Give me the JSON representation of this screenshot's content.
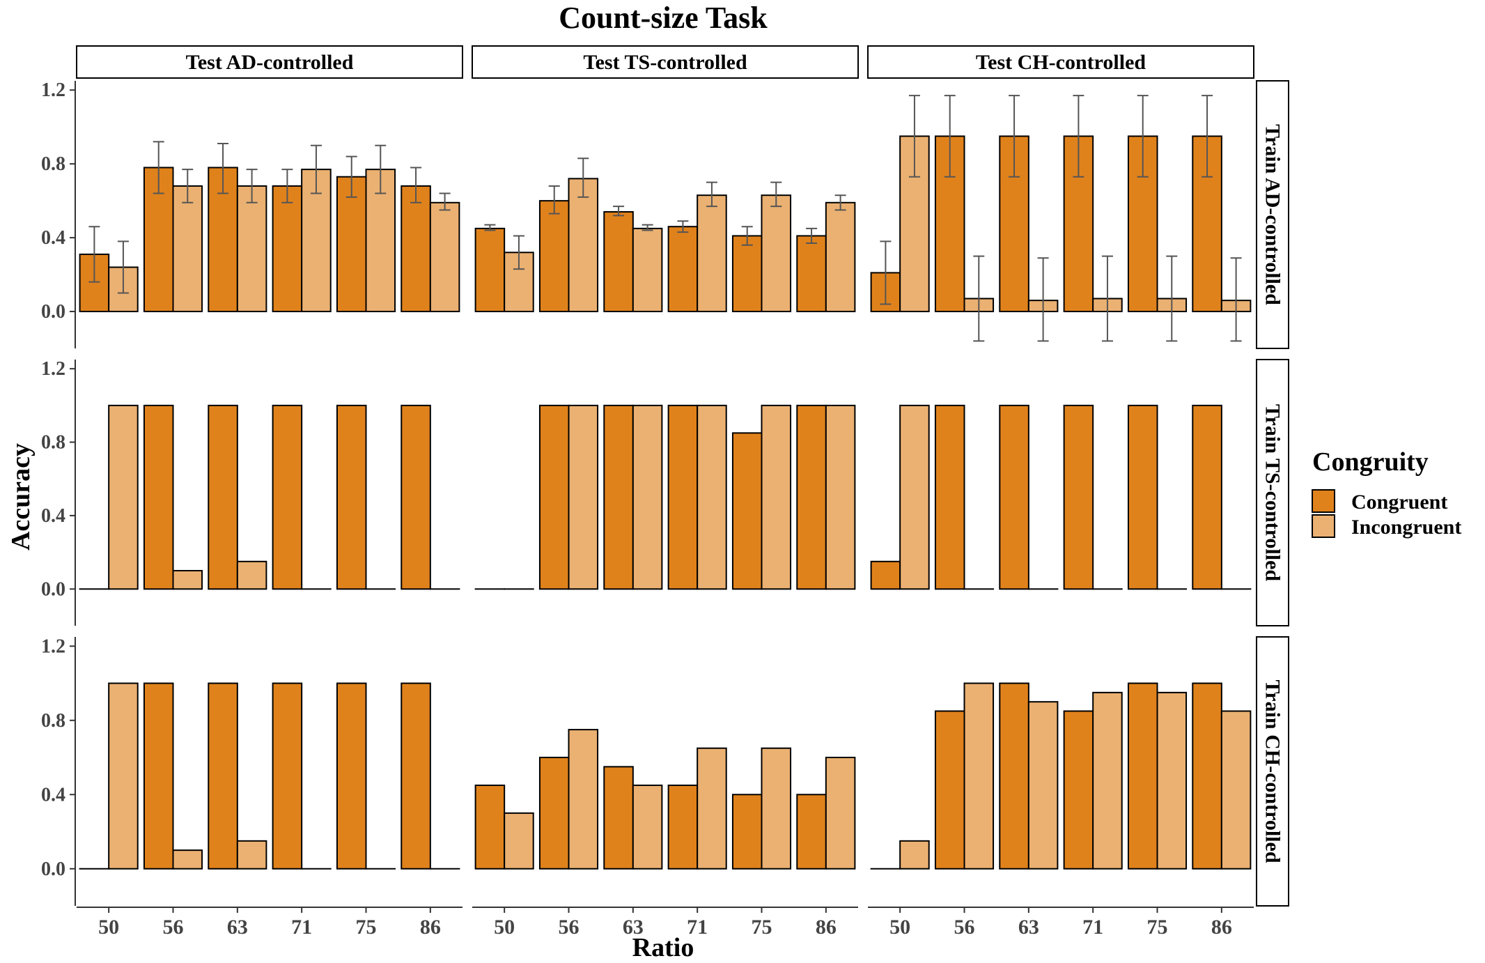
{
  "chart_data": {
    "type": "bar",
    "title": "Count-size Task",
    "xlabel": "Ratio",
    "ylabel": "Accuracy",
    "categories": [
      "50",
      "56",
      "63",
      "71",
      "75",
      "86"
    ],
    "ylim": [
      -0.2,
      1.25
    ],
    "yticks": [
      "0.0",
      "0.4",
      "0.8",
      "1.2"
    ],
    "grid": false,
    "legend": {
      "title": "Congruity",
      "position": "right",
      "entries": [
        "Congruent",
        "Incongruent"
      ]
    },
    "colors": {
      "Congruent": "#E0821C",
      "Incongruent": "#EBB172"
    },
    "columns": [
      "Test AD-controlled",
      "Test TS-controlled",
      "Test CH-controlled"
    ],
    "rows": [
      "Train AD-controlled",
      "Train TS-controlled",
      "Train CH-controlled"
    ],
    "panels": [
      {
        "row": "Train AD-controlled",
        "column": "Test AD-controlled",
        "series": [
          {
            "name": "Congruent",
            "values": [
              0.31,
              0.78,
              0.78,
              0.68,
              0.73,
              0.68
            ],
            "err_low": [
              0.16,
              0.64,
              0.64,
              0.59,
              0.62,
              0.59
            ],
            "err_high": [
              0.46,
              0.92,
              0.91,
              0.77,
              0.84,
              0.78
            ]
          },
          {
            "name": "Incongruent",
            "values": [
              0.24,
              0.68,
              0.68,
              0.77,
              0.77,
              0.59
            ],
            "err_low": [
              0.1,
              0.59,
              0.59,
              0.64,
              0.64,
              0.55
            ],
            "err_high": [
              0.38,
              0.77,
              0.77,
              0.9,
              0.9,
              0.64
            ]
          }
        ]
      },
      {
        "row": "Train AD-controlled",
        "column": "Test TS-controlled",
        "series": [
          {
            "name": "Congruent",
            "values": [
              0.45,
              0.6,
              0.54,
              0.46,
              0.41,
              0.41
            ],
            "err_low": [
              0.44,
              0.53,
              0.52,
              0.43,
              0.36,
              0.37
            ],
            "err_high": [
              0.47,
              0.68,
              0.57,
              0.49,
              0.46,
              0.45
            ]
          },
          {
            "name": "Incongruent",
            "values": [
              0.32,
              0.72,
              0.45,
              0.63,
              0.63,
              0.59
            ],
            "err_low": [
              0.23,
              0.62,
              0.44,
              0.57,
              0.57,
              0.55
            ],
            "err_high": [
              0.41,
              0.83,
              0.47,
              0.7,
              0.7,
              0.63
            ]
          }
        ]
      },
      {
        "row": "Train AD-controlled",
        "column": "Test CH-controlled",
        "series": [
          {
            "name": "Congruent",
            "values": [
              0.21,
              0.95,
              0.95,
              0.95,
              0.95,
              0.95
            ],
            "err_low": [
              0.04,
              0.73,
              0.73,
              0.73,
              0.73,
              0.73
            ],
            "err_high": [
              0.38,
              1.17,
              1.17,
              1.17,
              1.17,
              1.17
            ]
          },
          {
            "name": "Incongruent",
            "values": [
              0.95,
              0.07,
              0.06,
              0.07,
              0.07,
              0.06
            ],
            "err_low": [
              0.73,
              -0.16,
              -0.16,
              -0.16,
              -0.16,
              -0.16
            ],
            "err_high": [
              1.17,
              0.3,
              0.29,
              0.3,
              0.3,
              0.29
            ]
          }
        ]
      },
      {
        "row": "Train TS-controlled",
        "column": "Test AD-controlled",
        "series": [
          {
            "name": "Congruent",
            "values": [
              0.0,
              1.0,
              1.0,
              1.0,
              1.0,
              1.0
            ]
          },
          {
            "name": "Incongruent",
            "values": [
              1.0,
              0.1,
              0.15,
              0.0,
              0.0,
              0.0
            ]
          }
        ]
      },
      {
        "row": "Train TS-controlled",
        "column": "Test TS-controlled",
        "series": [
          {
            "name": "Congruent",
            "values": [
              0.0,
              1.0,
              1.0,
              1.0,
              0.85,
              1.0
            ]
          },
          {
            "name": "Incongruent",
            "values": [
              0.0,
              1.0,
              1.0,
              1.0,
              1.0,
              1.0
            ]
          }
        ]
      },
      {
        "row": "Train TS-controlled",
        "column": "Test CH-controlled",
        "series": [
          {
            "name": "Congruent",
            "values": [
              0.15,
              1.0,
              1.0,
              1.0,
              1.0,
              1.0
            ]
          },
          {
            "name": "Incongruent",
            "values": [
              1.0,
              0.0,
              0.0,
              0.0,
              0.0,
              0.0
            ]
          }
        ]
      },
      {
        "row": "Train CH-controlled",
        "column": "Test AD-controlled",
        "series": [
          {
            "name": "Congruent",
            "values": [
              0.0,
              1.0,
              1.0,
              1.0,
              1.0,
              1.0
            ]
          },
          {
            "name": "Incongruent",
            "values": [
              1.0,
              0.1,
              0.15,
              0.0,
              0.0,
              0.0
            ]
          }
        ]
      },
      {
        "row": "Train CH-controlled",
        "column": "Test TS-controlled",
        "series": [
          {
            "name": "Congruent",
            "values": [
              0.45,
              0.6,
              0.55,
              0.45,
              0.4,
              0.4
            ]
          },
          {
            "name": "Incongruent",
            "values": [
              0.3,
              0.75,
              0.45,
              0.65,
              0.65,
              0.6
            ]
          }
        ]
      },
      {
        "row": "Train CH-controlled",
        "column": "Test CH-controlled",
        "series": [
          {
            "name": "Congruent",
            "values": [
              0.0,
              0.85,
              1.0,
              0.85,
              1.0,
              1.0
            ]
          },
          {
            "name": "Incongruent",
            "values": [
              0.15,
              1.0,
              0.9,
              0.95,
              0.95,
              0.85
            ]
          }
        ]
      }
    ]
  }
}
